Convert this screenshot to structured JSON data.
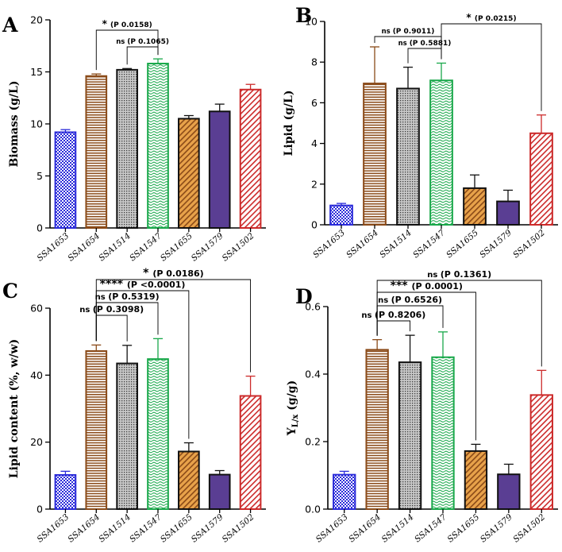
{
  "patterns": [
    {
      "key": "p0",
      "kind": "checker",
      "color": "#2b2bd9",
      "bg": "#ffffff"
    },
    {
      "key": "p1",
      "kind": "hlines",
      "color": "#8a4a18",
      "bg": "#ffffff"
    },
    {
      "key": "p2",
      "kind": "dots",
      "color": "#3a3a3a",
      "bg": "#c9c9c9"
    },
    {
      "key": "p3",
      "kind": "waves",
      "color": "#19a84a",
      "bg": "#ffffff"
    },
    {
      "key": "p4",
      "kind": "diag",
      "color": "#8a4a18",
      "bg": "#e8a24a"
    },
    {
      "key": "p5",
      "kind": "solid",
      "color": "#5a3e93",
      "bg": "#5a3e93"
    },
    {
      "key": "p6",
      "kind": "diag",
      "color": "#cc2a2a",
      "bg": "#ffffff"
    }
  ],
  "chart_data": [
    {
      "panel": "A",
      "type": "bar",
      "ylabel": "Biomass (g/L)",
      "ylim": [
        0,
        20
      ],
      "yticks": [
        0,
        5,
        10,
        15,
        20
      ],
      "categories": [
        "SSA1653",
        "SSA1654",
        "SSA1514",
        "SSA1547",
        "SSA1655",
        "SSA1579",
        "SSA1502"
      ],
      "values": [
        9.2,
        14.6,
        15.2,
        15.8,
        10.5,
        11.2,
        13.3
      ],
      "errors": [
        0.25,
        0.2,
        0.12,
        0.45,
        0.3,
        0.7,
        0.5
      ],
      "edge_colors": [
        "#2b2bd9",
        "#8a4a18",
        "#111111",
        "#19a84a",
        "#111111",
        "#111111",
        "#cc2a2a"
      ],
      "comparisons": [
        {
          "from": 1,
          "to": 3,
          "level": 0,
          "stars": "*",
          "label": "(P 0.0158)"
        },
        {
          "from": 2,
          "to": 3,
          "level": 1,
          "stars": "ns",
          "label": "(P 0.1065)"
        }
      ]
    },
    {
      "panel": "B",
      "type": "bar",
      "ylabel": "Lipid (g/L)",
      "ylim": [
        0,
        10
      ],
      "yticks": [
        0,
        2,
        4,
        6,
        8,
        10
      ],
      "categories": [
        "SSA1653",
        "SSA1654",
        "SSA1514",
        "SSA1547",
        "SSA1655",
        "SSA1579",
        "SSA1502"
      ],
      "values": [
        0.95,
        6.95,
        6.7,
        7.1,
        1.8,
        1.15,
        4.5
      ],
      "errors": [
        0.1,
        1.8,
        1.05,
        0.85,
        0.65,
        0.55,
        0.9
      ],
      "edge_colors": [
        "#2b2bd9",
        "#8a4a18",
        "#111111",
        "#19a84a",
        "#111111",
        "#111111",
        "#cc2a2a"
      ],
      "comparisons": [
        {
          "from": 3,
          "to": 6,
          "level": 0,
          "stars": "*",
          "label": "(P 0.0215)"
        },
        {
          "from": 1,
          "to": 3,
          "level": 1,
          "stars": "ns",
          "label": "(P 0.9011)"
        },
        {
          "from": 2,
          "to": 3,
          "level": 2,
          "stars": "ns",
          "label": "(P 0.5881)"
        }
      ]
    },
    {
      "panel": "C",
      "type": "bar",
      "ylabel": "Lipid content (%, w/w)",
      "ylim": [
        0,
        60
      ],
      "yticks": [
        0,
        20,
        40,
        60
      ],
      "categories": [
        "SSA1653",
        "SSA1654",
        "SSA1514",
        "SSA1547",
        "SSA1655",
        "SSA1579",
        "SSA1502"
      ],
      "values": [
        10.2,
        47.2,
        43.5,
        44.8,
        17.2,
        10.3,
        33.8
      ],
      "errors": [
        1.1,
        1.8,
        5.4,
        6.1,
        2.6,
        1.2,
        5.9
      ],
      "edge_colors": [
        "#2b2bd9",
        "#8a4a18",
        "#111111",
        "#19a84a",
        "#111111",
        "#111111",
        "#cc2a2a"
      ],
      "comparisons": [
        {
          "from": 1,
          "to": 6,
          "level": 0,
          "stars": "*",
          "label": "(P 0.0186)"
        },
        {
          "from": 1,
          "to": 4,
          "level": 1,
          "stars": "****",
          "label": "(P <0.0001)"
        },
        {
          "from": 1,
          "to": 3,
          "level": 2,
          "stars": "ns",
          "label": "(P 0.5319)"
        },
        {
          "from": 1,
          "to": 2,
          "level": 3,
          "stars": "ns",
          "label": "(P 0.3098)"
        }
      ]
    },
    {
      "panel": "D",
      "type": "bar",
      "ylabel": "Y",
      "ylabel_sub": "L/x",
      "ylabel_unit": " (g/g)",
      "ylim": [
        0,
        0.6
      ],
      "yticks": [
        "0.0",
        "0.2",
        "0.4",
        "0.6"
      ],
      "categories": [
        "SSA1653",
        "SSA1654",
        "SSA1514",
        "SSA1547",
        "SSA1655",
        "SSA1579",
        "SSA1502"
      ],
      "values": [
        0.102,
        0.472,
        0.435,
        0.45,
        0.172,
        0.103,
        0.338
      ],
      "errors": [
        0.01,
        0.03,
        0.08,
        0.075,
        0.02,
        0.03,
        0.073
      ],
      "edge_colors": [
        "#2b2bd9",
        "#8a4a18",
        "#111111",
        "#19a84a",
        "#111111",
        "#111111",
        "#cc2a2a"
      ],
      "comparisons": [
        {
          "from": 1,
          "to": 6,
          "level": 0,
          "stars": "ns",
          "label": "(P 0.1361)"
        },
        {
          "from": 1,
          "to": 4,
          "level": 1,
          "stars": "***",
          "label": "(P 0.0001)"
        },
        {
          "from": 1,
          "to": 3,
          "level": 2,
          "stars": "ns",
          "label": "(P 0.6526)"
        },
        {
          "from": 1,
          "to": 2,
          "level": 3,
          "stars": "ns",
          "label": "(P 0.8206)"
        }
      ]
    }
  ]
}
